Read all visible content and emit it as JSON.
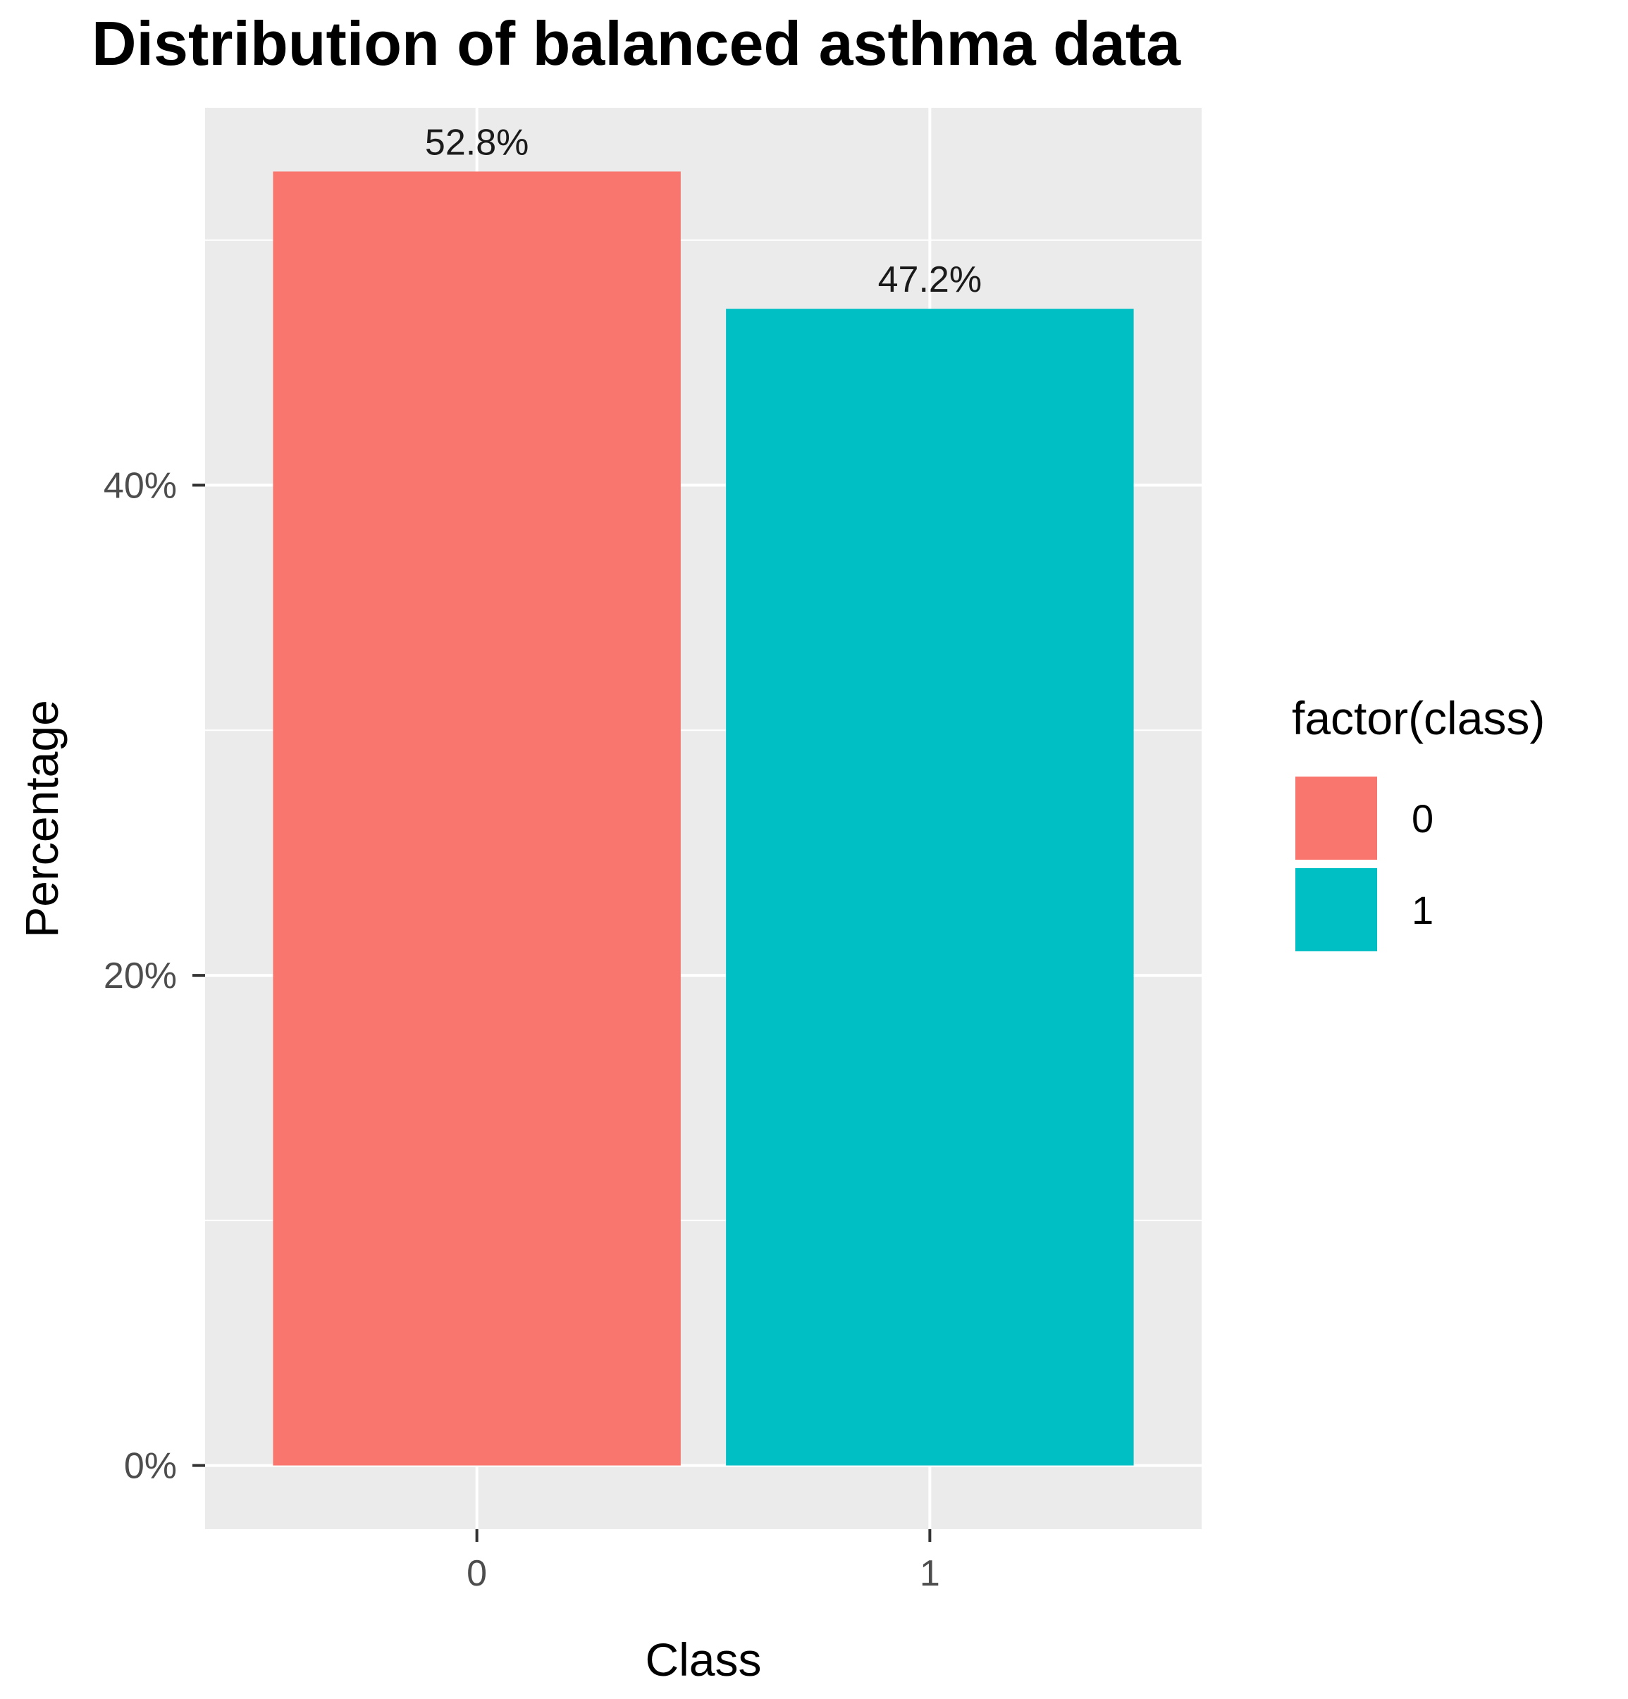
{
  "chart_data": {
    "type": "bar",
    "title": "Distribution of balanced asthma data",
    "xlabel": "Class",
    "ylabel": "Percentage",
    "categories": [
      "0",
      "1"
    ],
    "values": [
      52.8,
      47.2
    ],
    "data_labels": [
      "52.8%",
      "47.2%"
    ],
    "ylim": [
      -2.6,
      55.4
    ],
    "yticks": [
      0,
      20,
      40
    ],
    "ytick_labels": [
      "0%",
      "20%",
      "40%"
    ],
    "grid": true,
    "colors": [
      "#F8766D",
      "#00BFC4"
    ],
    "legend": {
      "title": "factor(class)",
      "placement": "right",
      "entries": [
        "0",
        "1"
      ]
    }
  }
}
